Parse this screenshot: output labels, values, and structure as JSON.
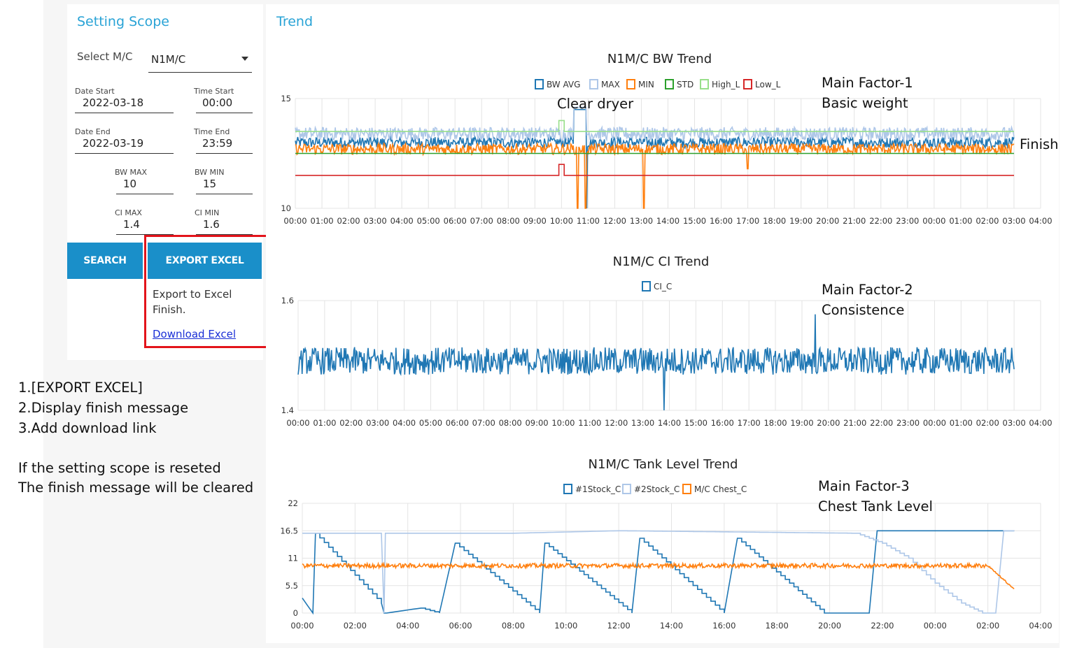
{
  "setting": {
    "title": "Setting Scope",
    "select_label": "Select M/C",
    "select_value": "N1M/C",
    "date_start_label": "Date Start",
    "date_start": "2022-03-18",
    "time_start_label": "Time Start",
    "time_start": "00:00",
    "date_end_label": "Date End",
    "date_end": "2022-03-19",
    "time_end_label": "Time End",
    "time_end": "23:59",
    "bw_max_label": "BW MAX",
    "bw_max": "10",
    "bw_min_label": "BW MIN",
    "bw_min": "15",
    "ci_max_label": "CI MAX",
    "ci_max": "1.4",
    "ci_min_label": "CI MIN",
    "ci_min": "1.6",
    "search_button": "SEARCH",
    "export_button": "EXPORT EXCEL",
    "export_msg_line1": "Export to Excel",
    "export_msg_line2": "Finish.",
    "download_link": "Download Excel"
  },
  "notes": {
    "line1": "1.[EXPORT EXCEL]",
    "line2": "2.Display finish message",
    "line3": "3.Add download link",
    "line4": "If the setting scope is reseted",
    "line5": "The finish message will be cleared"
  },
  "trend": {
    "title": "Trend"
  },
  "annotations": {
    "clear_dryer": "Clear dryer",
    "factor1_a": "Main Factor-1",
    "factor1_b": "Basic weight",
    "finish": "Finish",
    "factor2_a": "Main Factor-2",
    "factor2_b": "Consistence",
    "factor3_a": "Main Factor-3",
    "factor3_b": "Chest Tank Level"
  },
  "colors": {
    "accent": "#29a3d6",
    "button": "#1a8fc9",
    "highlight_box": "#e3141b",
    "link": "#1a2fd6",
    "bw_avg": "#1f77b4",
    "max": "#aec7e8",
    "min": "#ff7f0e",
    "std": "#2ca02c",
    "high_l": "#98df8a",
    "low_l": "#d62728"
  },
  "chart_data": [
    {
      "type": "line",
      "title": "N1M/C BW Trend",
      "x_ticks": [
        "00:00",
        "01:00",
        "02:00",
        "03:00",
        "04:00",
        "05:00",
        "06:00",
        "07:00",
        "08:00",
        "09:00",
        "10:00",
        "11:00",
        "12:00",
        "13:00",
        "14:00",
        "15:00",
        "16:00",
        "17:00",
        "18:00",
        "19:00",
        "20:00",
        "21:00",
        "22:00",
        "23:00",
        "00:00",
        "01:00",
        "02:00",
        "03:00",
        "04:00"
      ],
      "y_ticks": [
        "10",
        "15"
      ],
      "ylim": [
        10,
        15
      ],
      "x_range_hours": [
        0,
        28
      ],
      "series": [
        {
          "name": "BW AVG",
          "color": "#1f77b4",
          "level": 13.0,
          "noise": 0.25,
          "events": [
            {
              "at": 10.7,
              "to": 14.5,
              "width": 0.5
            },
            {
              "at": 10.95,
              "to": 10.0,
              "width": 0.05
            }
          ]
        },
        {
          "name": "MAX",
          "color": "#aec7e8",
          "level": 13.4,
          "noise": 0.3,
          "events": [
            {
              "at": 10.7,
              "to": 14.6,
              "width": 0.5
            }
          ]
        },
        {
          "name": "MIN",
          "color": "#ff7f0e",
          "level": 12.7,
          "noise": 0.25,
          "events": [
            {
              "at": 10.6,
              "to": 10.0,
              "width": 0.05
            },
            {
              "at": 10.9,
              "to": 10.0,
              "width": 0.05
            },
            {
              "at": 13.1,
              "to": 10.0,
              "width": 0.05
            },
            {
              "at": 17.0,
              "to": 11.8,
              "width": 0.05
            }
          ]
        },
        {
          "name": "STD",
          "color": "#2ca02c",
          "level": 12.5,
          "noise": 0
        },
        {
          "name": "High_L",
          "color": "#98df8a",
          "level": 13.5,
          "noise": 0,
          "events": [
            {
              "at": 10.0,
              "to": 14.0,
              "width": 0.2
            }
          ]
        },
        {
          "name": "Low_L",
          "color": "#d62728",
          "level": 11.5,
          "noise": 0,
          "events": [
            {
              "at": 10.0,
              "to": 12.0,
              "width": 0.2
            }
          ]
        }
      ],
      "x_end_hour": 27.0
    },
    {
      "type": "line",
      "title": "N1M/C CI Trend",
      "x_ticks": [
        "00:00",
        "01:00",
        "02:00",
        "03:00",
        "04:00",
        "05:00",
        "06:00",
        "07:00",
        "08:00",
        "09:00",
        "10:00",
        "11:00",
        "12:00",
        "13:00",
        "14:00",
        "15:00",
        "16:00",
        "17:00",
        "18:00",
        "19:00",
        "20:00",
        "21:00",
        "22:00",
        "23:00",
        "00:00",
        "01:00",
        "02:00",
        "03:00",
        "04:00"
      ],
      "y_ticks": [
        "1.4",
        "1.6"
      ],
      "ylim": [
        1.4,
        1.6
      ],
      "x_range_hours": [
        0,
        28
      ],
      "series": [
        {
          "name": "CI_C",
          "color": "#1f77b4",
          "level": 1.49,
          "noise": 0.025,
          "events": [
            {
              "at": 13.8,
              "to": 1.59,
              "width": 0.05
            },
            {
              "at": 13.8,
              "to": 1.4,
              "width": 0.05
            },
            {
              "at": 19.5,
              "to": 1.575,
              "width": 0.05
            }
          ]
        }
      ],
      "x_end_hour": 27.0
    },
    {
      "type": "line",
      "title": "N1M/C Tank Level Trend",
      "x_ticks": [
        "00:00",
        "02:00",
        "04:00",
        "06:00",
        "08:00",
        "10:00",
        "12:00",
        "14:00",
        "16:00",
        "18:00",
        "20:00",
        "22:00",
        "00:00",
        "02:00",
        "04:00"
      ],
      "y_ticks": [
        "0",
        "5.5",
        "11",
        "16.5",
        "22"
      ],
      "ylim": [
        0,
        22
      ],
      "x_range_hours": [
        0,
        28
      ],
      "series": [
        {
          "name": "#1Stock_C",
          "color": "#1f77b4",
          "points": [
            [
              0,
              3
            ],
            [
              0.4,
              0
            ],
            [
              0.5,
              16
            ],
            [
              3.0,
              2
            ],
            [
              3.1,
              0
            ],
            [
              3.2,
              0
            ],
            [
              4.5,
              1
            ],
            [
              5.2,
              0
            ],
            [
              5.8,
              14
            ],
            [
              9.0,
              0
            ],
            [
              9.2,
              14
            ],
            [
              12.5,
              0
            ],
            [
              12.8,
              15
            ],
            [
              16.0,
              0
            ],
            [
              16.5,
              15
            ],
            [
              19.8,
              0
            ],
            [
              21.5,
              0
            ],
            [
              21.8,
              16.5
            ],
            [
              27.0,
              16.5
            ]
          ]
        },
        {
          "name": "#2Stock_C",
          "color": "#aec7e8",
          "points": [
            [
              0,
              16
            ],
            [
              3.0,
              16
            ],
            [
              3.1,
              0
            ],
            [
              3.15,
              16
            ],
            [
              8.0,
              16
            ],
            [
              12.0,
              16.5
            ],
            [
              21.0,
              16
            ],
            [
              22.0,
              14
            ],
            [
              23.0,
              11
            ],
            [
              24.0,
              6
            ],
            [
              25.0,
              2
            ],
            [
              25.8,
              0
            ],
            [
              26.3,
              0
            ],
            [
              26.6,
              16.5
            ],
            [
              27.0,
              16.5
            ]
          ]
        },
        {
          "name": "M/C Chest_C",
          "color": "#ff7f0e",
          "level": 9.5,
          "noise": 0.45,
          "tail": [
            [
              26.0,
              9.5
            ],
            [
              27.0,
              4.8
            ]
          ]
        }
      ],
      "x_end_hour": 27.0
    }
  ]
}
